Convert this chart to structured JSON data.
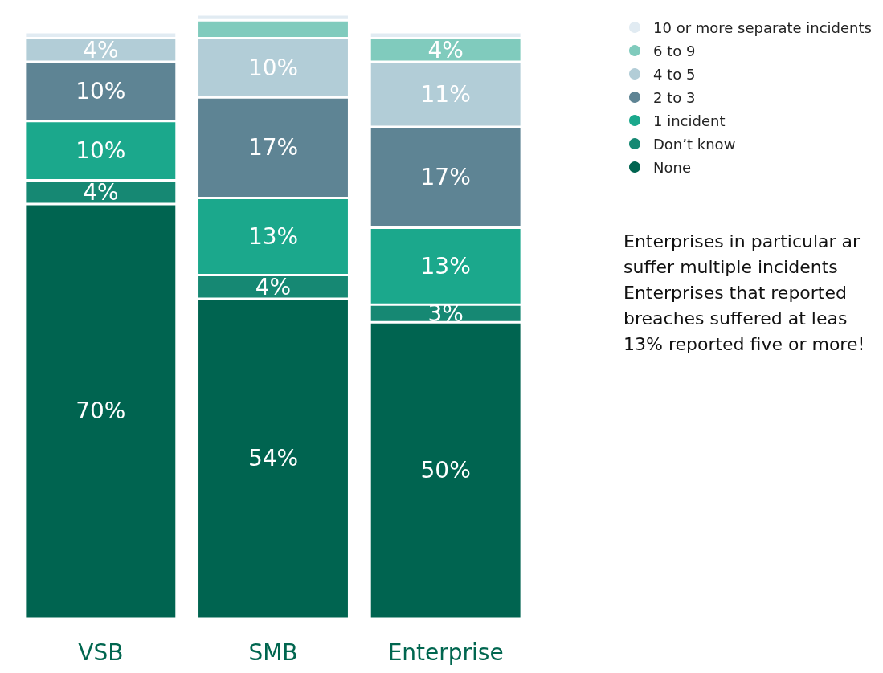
{
  "chart_data": {
    "type": "bar",
    "stacked": true,
    "categories": [
      "VSB",
      "SMB",
      "Enterprise"
    ],
    "series": [
      {
        "name": "None",
        "color": "#006450",
        "values": [
          70,
          54,
          50
        ],
        "value_labels": [
          "70%",
          "54%",
          "50%"
        ]
      },
      {
        "name": "Don’t know",
        "color": "#168873",
        "values": [
          4,
          4,
          3
        ],
        "value_labels": [
          "4%",
          "4%",
          "3%"
        ]
      },
      {
        "name": "1 incident",
        "color": "#1ba88c",
        "values": [
          10,
          13,
          13
        ],
        "value_labels": [
          "10%",
          "13%",
          "13%"
        ]
      },
      {
        "name": "2 to 3",
        "color": "#5e8494",
        "values": [
          10,
          17,
          17
        ],
        "value_labels": [
          "10%",
          "17%",
          "17%"
        ]
      },
      {
        "name": "4 to 5",
        "color": "#b2cdd7",
        "values": [
          4,
          10,
          11
        ],
        "value_labels": [
          "4%",
          "10%",
          "11%"
        ]
      },
      {
        "name": "6 to 9",
        "color": "#80cbbd",
        "values": [
          0,
          3,
          4
        ],
        "value_labels": [
          null,
          null,
          "4%"
        ]
      },
      {
        "name": "10 or more separate incidents",
        "color": "#e1ebf2",
        "values": [
          1,
          1,
          1
        ],
        "value_labels": [
          null,
          null,
          null
        ]
      }
    ],
    "legend": "top right",
    "annotations": [
      "Enterprises in particular ar\nsuffer multiple incidents\nEnterprises that reported\nbreaches suffered at leas\n13% reported five or more!"
    ]
  }
}
